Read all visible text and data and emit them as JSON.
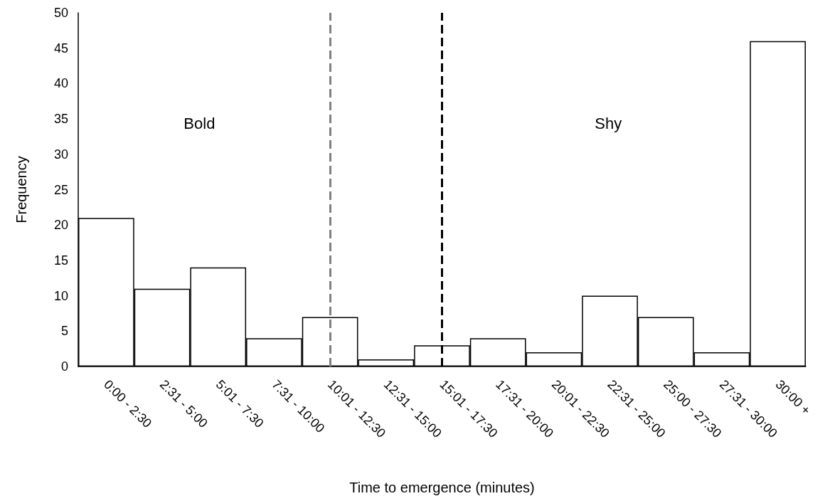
{
  "chart_data": {
    "type": "bar",
    "xlabel": "Time to emergence (minutes)",
    "ylabel": "Frequency",
    "categories": [
      "0:00 - 2:30",
      "2:31 - 5:00",
      "5:01 - 7:30",
      "7:31 - 10:00",
      "10:01 - 12:30",
      "12:31 - 15:00",
      "15:01 - 17:30",
      "17:31 - 20:00",
      "20:01 - 22:30",
      "22:31 - 25:00",
      "25:00 - 27:30",
      "27:31 - 30:00",
      "30:00 +"
    ],
    "values": [
      21,
      11,
      14,
      4,
      7,
      1,
      3,
      4,
      2,
      10,
      7,
      2,
      46
    ],
    "color": "#ffffff",
    "ylim": [
      0,
      50
    ],
    "yticks": [
      0,
      5,
      10,
      15,
      20,
      25,
      30,
      35,
      40,
      45,
      50
    ],
    "grid": false,
    "ref_lines": [
      {
        "axis": "x",
        "value": "10:01 - 12:30",
        "label": null,
        "color": "#808080",
        "line_style": "dashed"
      },
      {
        "axis": "x",
        "value": "15:01 - 17:30",
        "label": null,
        "color": "#000000",
        "line_style": "dashed"
      }
    ],
    "annotations": [
      "Bold",
      "Shy"
    ]
  }
}
